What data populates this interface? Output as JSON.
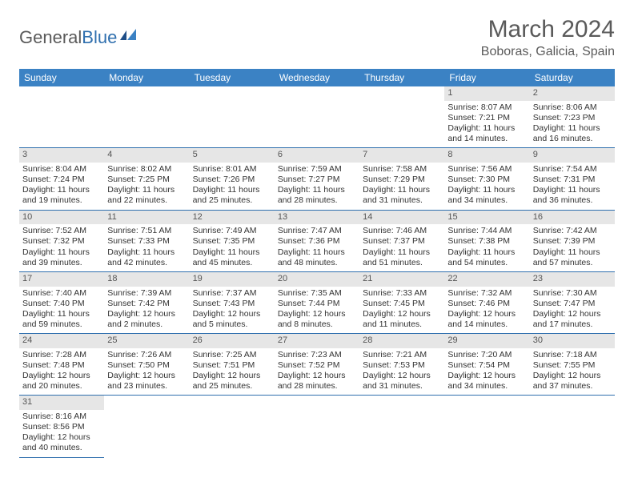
{
  "brand": {
    "part1": "General",
    "part2": "Blue"
  },
  "title": "March 2024",
  "location": "Boboras, Galicia, Spain",
  "colors": {
    "header_bg": "#3b82c4",
    "header_text": "#ffffff",
    "border": "#2f6fae",
    "daynum_bg": "#e6e6e6",
    "text": "#333333",
    "title_color": "#5a5a5a"
  },
  "day_headers": [
    "Sunday",
    "Monday",
    "Tuesday",
    "Wednesday",
    "Thursday",
    "Friday",
    "Saturday"
  ],
  "leading_blank": 5,
  "days": [
    {
      "n": "1",
      "sunrise": "Sunrise: 8:07 AM",
      "sunset": "Sunset: 7:21 PM",
      "daylight": "Daylight: 11 hours and 14 minutes."
    },
    {
      "n": "2",
      "sunrise": "Sunrise: 8:06 AM",
      "sunset": "Sunset: 7:23 PM",
      "daylight": "Daylight: 11 hours and 16 minutes."
    },
    {
      "n": "3",
      "sunrise": "Sunrise: 8:04 AM",
      "sunset": "Sunset: 7:24 PM",
      "daylight": "Daylight: 11 hours and 19 minutes."
    },
    {
      "n": "4",
      "sunrise": "Sunrise: 8:02 AM",
      "sunset": "Sunset: 7:25 PM",
      "daylight": "Daylight: 11 hours and 22 minutes."
    },
    {
      "n": "5",
      "sunrise": "Sunrise: 8:01 AM",
      "sunset": "Sunset: 7:26 PM",
      "daylight": "Daylight: 11 hours and 25 minutes."
    },
    {
      "n": "6",
      "sunrise": "Sunrise: 7:59 AM",
      "sunset": "Sunset: 7:27 PM",
      "daylight": "Daylight: 11 hours and 28 minutes."
    },
    {
      "n": "7",
      "sunrise": "Sunrise: 7:58 AM",
      "sunset": "Sunset: 7:29 PM",
      "daylight": "Daylight: 11 hours and 31 minutes."
    },
    {
      "n": "8",
      "sunrise": "Sunrise: 7:56 AM",
      "sunset": "Sunset: 7:30 PM",
      "daylight": "Daylight: 11 hours and 34 minutes."
    },
    {
      "n": "9",
      "sunrise": "Sunrise: 7:54 AM",
      "sunset": "Sunset: 7:31 PM",
      "daylight": "Daylight: 11 hours and 36 minutes."
    },
    {
      "n": "10",
      "sunrise": "Sunrise: 7:52 AM",
      "sunset": "Sunset: 7:32 PM",
      "daylight": "Daylight: 11 hours and 39 minutes."
    },
    {
      "n": "11",
      "sunrise": "Sunrise: 7:51 AM",
      "sunset": "Sunset: 7:33 PM",
      "daylight": "Daylight: 11 hours and 42 minutes."
    },
    {
      "n": "12",
      "sunrise": "Sunrise: 7:49 AM",
      "sunset": "Sunset: 7:35 PM",
      "daylight": "Daylight: 11 hours and 45 minutes."
    },
    {
      "n": "13",
      "sunrise": "Sunrise: 7:47 AM",
      "sunset": "Sunset: 7:36 PM",
      "daylight": "Daylight: 11 hours and 48 minutes."
    },
    {
      "n": "14",
      "sunrise": "Sunrise: 7:46 AM",
      "sunset": "Sunset: 7:37 PM",
      "daylight": "Daylight: 11 hours and 51 minutes."
    },
    {
      "n": "15",
      "sunrise": "Sunrise: 7:44 AM",
      "sunset": "Sunset: 7:38 PM",
      "daylight": "Daylight: 11 hours and 54 minutes."
    },
    {
      "n": "16",
      "sunrise": "Sunrise: 7:42 AM",
      "sunset": "Sunset: 7:39 PM",
      "daylight": "Daylight: 11 hours and 57 minutes."
    },
    {
      "n": "17",
      "sunrise": "Sunrise: 7:40 AM",
      "sunset": "Sunset: 7:40 PM",
      "daylight": "Daylight: 11 hours and 59 minutes."
    },
    {
      "n": "18",
      "sunrise": "Sunrise: 7:39 AM",
      "sunset": "Sunset: 7:42 PM",
      "daylight": "Daylight: 12 hours and 2 minutes."
    },
    {
      "n": "19",
      "sunrise": "Sunrise: 7:37 AM",
      "sunset": "Sunset: 7:43 PM",
      "daylight": "Daylight: 12 hours and 5 minutes."
    },
    {
      "n": "20",
      "sunrise": "Sunrise: 7:35 AM",
      "sunset": "Sunset: 7:44 PM",
      "daylight": "Daylight: 12 hours and 8 minutes."
    },
    {
      "n": "21",
      "sunrise": "Sunrise: 7:33 AM",
      "sunset": "Sunset: 7:45 PM",
      "daylight": "Daylight: 12 hours and 11 minutes."
    },
    {
      "n": "22",
      "sunrise": "Sunrise: 7:32 AM",
      "sunset": "Sunset: 7:46 PM",
      "daylight": "Daylight: 12 hours and 14 minutes."
    },
    {
      "n": "23",
      "sunrise": "Sunrise: 7:30 AM",
      "sunset": "Sunset: 7:47 PM",
      "daylight": "Daylight: 12 hours and 17 minutes."
    },
    {
      "n": "24",
      "sunrise": "Sunrise: 7:28 AM",
      "sunset": "Sunset: 7:48 PM",
      "daylight": "Daylight: 12 hours and 20 minutes."
    },
    {
      "n": "25",
      "sunrise": "Sunrise: 7:26 AM",
      "sunset": "Sunset: 7:50 PM",
      "daylight": "Daylight: 12 hours and 23 minutes."
    },
    {
      "n": "26",
      "sunrise": "Sunrise: 7:25 AM",
      "sunset": "Sunset: 7:51 PM",
      "daylight": "Daylight: 12 hours and 25 minutes."
    },
    {
      "n": "27",
      "sunrise": "Sunrise: 7:23 AM",
      "sunset": "Sunset: 7:52 PM",
      "daylight": "Daylight: 12 hours and 28 minutes."
    },
    {
      "n": "28",
      "sunrise": "Sunrise: 7:21 AM",
      "sunset": "Sunset: 7:53 PM",
      "daylight": "Daylight: 12 hours and 31 minutes."
    },
    {
      "n": "29",
      "sunrise": "Sunrise: 7:20 AM",
      "sunset": "Sunset: 7:54 PM",
      "daylight": "Daylight: 12 hours and 34 minutes."
    },
    {
      "n": "30",
      "sunrise": "Sunrise: 7:18 AM",
      "sunset": "Sunset: 7:55 PM",
      "daylight": "Daylight: 12 hours and 37 minutes."
    },
    {
      "n": "31",
      "sunrise": "Sunrise: 8:16 AM",
      "sunset": "Sunset: 8:56 PM",
      "daylight": "Daylight: 12 hours and 40 minutes."
    }
  ]
}
